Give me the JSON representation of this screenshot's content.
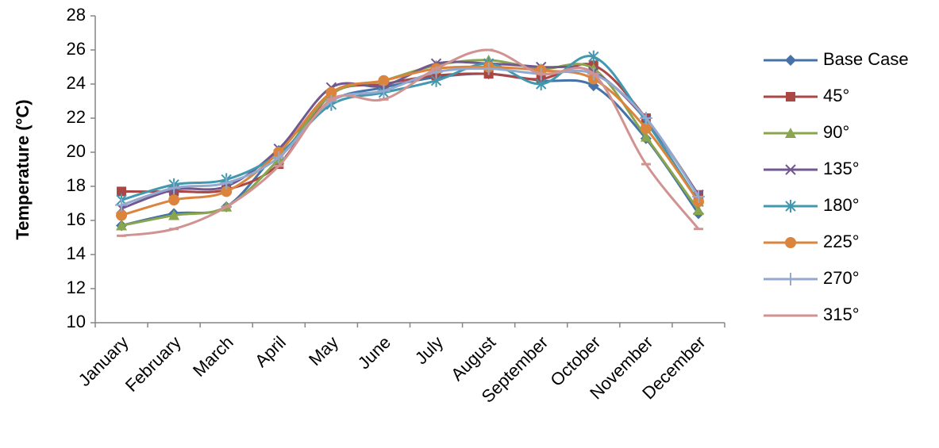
{
  "chart_data": {
    "type": "line",
    "y_label": "Temperature (°C)",
    "categories": [
      "January",
      "February",
      "March",
      "April",
      "May",
      "June",
      "July",
      "August",
      "September",
      "October",
      "November",
      "December"
    ],
    "ylim": [
      10,
      28
    ],
    "yticks": [
      10,
      12,
      14,
      16,
      18,
      20,
      22,
      24,
      26,
      28
    ],
    "smooth": true,
    "series": [
      {
        "name": "Base Case",
        "color": "#4572a7",
        "marker": "diamond",
        "values": [
          15.7,
          16.4,
          16.8,
          20.1,
          23.0,
          23.8,
          24.4,
          24.6,
          24.2,
          23.9,
          20.8,
          16.4
        ]
      },
      {
        "name": "45°",
        "color": "#aa4643",
        "marker": "square",
        "values": [
          17.7,
          17.7,
          17.8,
          19.3,
          23.4,
          24.0,
          24.5,
          24.6,
          24.3,
          25.1,
          22.0,
          17.5
        ]
      },
      {
        "name": "90°",
        "color": "#89a54e",
        "marker": "triangle",
        "values": [
          15.7,
          16.3,
          16.8,
          19.6,
          23.4,
          24.2,
          25.1,
          25.4,
          24.9,
          24.9,
          20.9,
          16.6
        ]
      },
      {
        "name": "135°",
        "color": "#71588f",
        "marker": "x",
        "values": [
          16.7,
          17.8,
          18.0,
          20.2,
          23.8,
          23.9,
          25.2,
          25.2,
          25.0,
          24.7,
          21.9,
          17.5
        ]
      },
      {
        "name": "180°",
        "color": "#4198af",
        "marker": "star",
        "values": [
          17.2,
          18.1,
          18.4,
          19.9,
          22.8,
          23.5,
          24.2,
          25.2,
          24.0,
          25.6,
          21.8,
          17.1
        ]
      },
      {
        "name": "225°",
        "color": "#db843d",
        "marker": "circle",
        "values": [
          16.3,
          17.2,
          17.7,
          20.0,
          23.5,
          24.2,
          24.9,
          25.0,
          24.8,
          24.3,
          21.4,
          17.1
        ]
      },
      {
        "name": "270°",
        "color": "#93a9cf",
        "marker": "plus",
        "values": [
          16.9,
          17.9,
          18.2,
          19.7,
          23.0,
          23.6,
          24.7,
          24.9,
          24.6,
          24.6,
          22.0,
          17.4
        ]
      },
      {
        "name": "315°",
        "color": "#d19392",
        "marker": "dash",
        "values": [
          15.1,
          15.5,
          16.8,
          19.2,
          23.1,
          23.1,
          24.9,
          26.0,
          24.6,
          24.6,
          19.3,
          15.5
        ]
      }
    ]
  }
}
